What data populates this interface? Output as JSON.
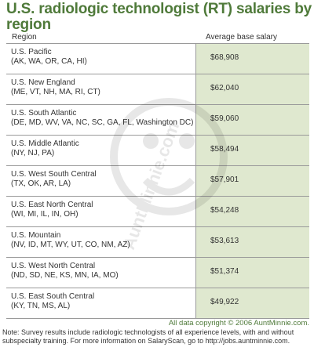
{
  "title": "U.S. radiologic technologist (RT) salaries by region",
  "headers": {
    "region": "Region",
    "salary": "Average base salary"
  },
  "rows": [
    {
      "region": "U.S. Pacific",
      "states": "(AK, WA, OR, CA, HI)",
      "salary": "$68,908"
    },
    {
      "region": "U.S. New England",
      "states": "(ME, VT, NH, MA, RI, CT)",
      "salary": "$62,040"
    },
    {
      "region": "U.S. South Atlantic",
      "states": "(DE, MD, WV, VA, NC, SC, GA, FL, Washington DC)",
      "salary": "$59,060"
    },
    {
      "region": "U.S. Middle Atlantic",
      "states": "(NY, NJ, PA)",
      "salary": "$58,494"
    },
    {
      "region": "U.S. West South Central",
      "states": "(TX, OK, AR, LA)",
      "salary": "$57,901"
    },
    {
      "region": "U.S. East North Central",
      "states": "(WI, MI, IL, IN, OH)",
      "salary": "$54,248"
    },
    {
      "region": "U.S. Mountain",
      "states": "(NV, ID, MT, WY, UT, CO, NM, AZ)",
      "salary": "$53,613"
    },
    {
      "region": "U.S. West North Central",
      "states": "(ND, SD, NE, KS, MN, IA, MO)",
      "salary": "$51,374"
    },
    {
      "region": "U.S. East South Central",
      "states": "(KY, TN, MS, AL)",
      "salary": "$49,922"
    }
  ],
  "watermark": "AuntMinnie.com",
  "copyright": "All data copyright © 2006 AuntMinnie.com.",
  "note": "Note: Survey results include radiologic technologists of all experience levels, with and without subspecialty training. For more information on SalaryScan, go to http://jobs.auntminnie.com.",
  "chart_data": {
    "type": "table",
    "title": "U.S. radiologic technologist (RT) salaries by region",
    "columns": [
      "Region",
      "Average base salary"
    ],
    "categories": [
      "U.S. Pacific",
      "U.S. New England",
      "U.S. South Atlantic",
      "U.S. Middle Atlantic",
      "U.S. West South Central",
      "U.S. East North Central",
      "U.S. Mountain",
      "U.S. West North Central",
      "U.S. East South Central"
    ],
    "values": [
      68908,
      62040,
      59060,
      58494,
      57901,
      54248,
      53613,
      51374,
      49922
    ]
  }
}
